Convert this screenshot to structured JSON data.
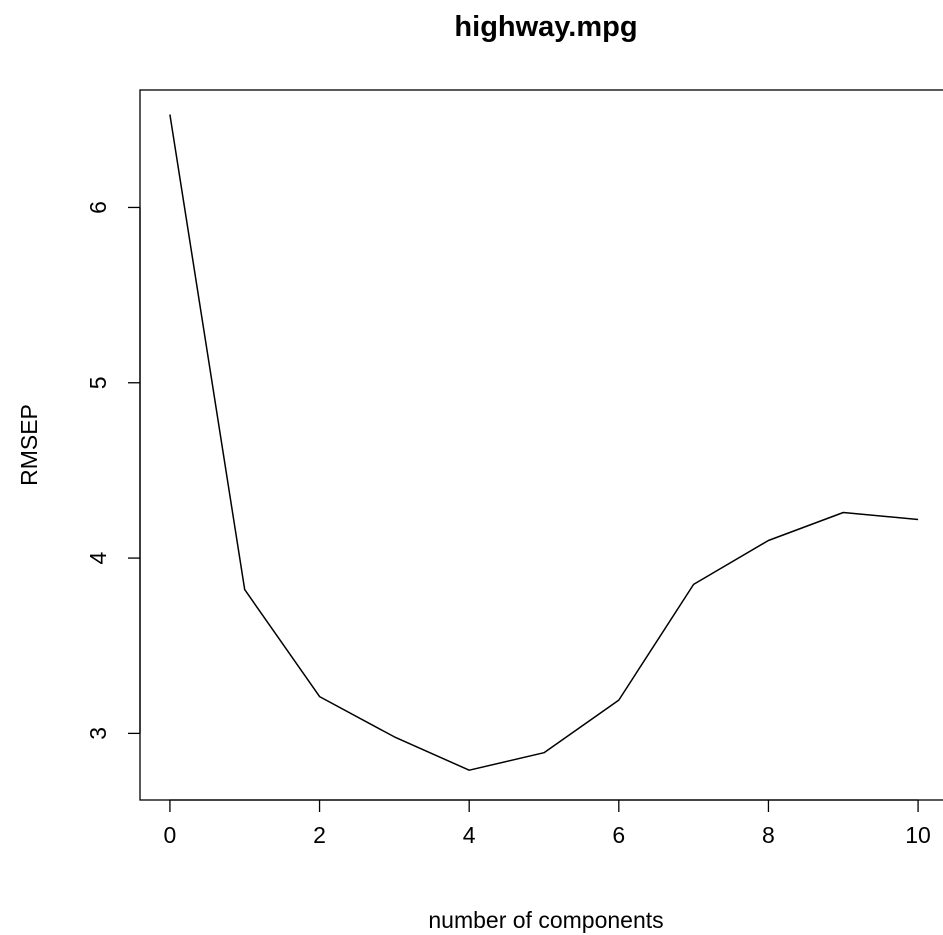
{
  "chart_data": {
    "type": "line",
    "title": "highway.mpg",
    "xlabel": "number of components",
    "ylabel": "RMSEP",
    "x": [
      0,
      1,
      2,
      3,
      4,
      5,
      6,
      7,
      8,
      9,
      10
    ],
    "y": [
      6.53,
      3.82,
      3.21,
      2.98,
      2.79,
      2.89,
      3.19,
      3.85,
      4.1,
      4.26,
      4.22
    ],
    "xlim": [
      -0.4,
      10.4
    ],
    "ylim": [
      2.62,
      6.67
    ],
    "xticks": [
      0,
      2,
      4,
      6,
      8,
      10
    ],
    "yticks": [
      3,
      4,
      5,
      6
    ],
    "grid": false,
    "line_color": "#000000"
  }
}
